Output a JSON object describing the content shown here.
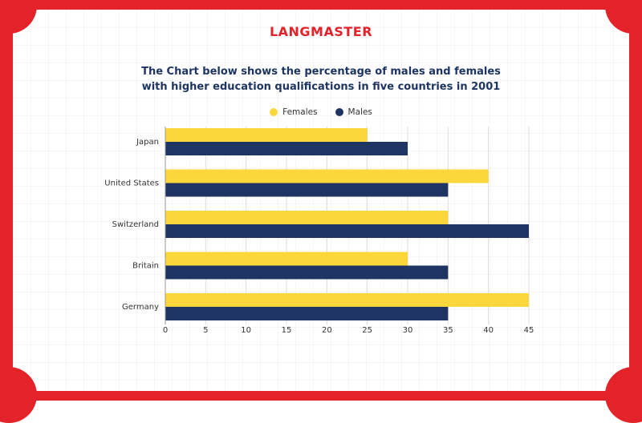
{
  "brand": "LANGMASTER",
  "chart_data": {
    "type": "bar",
    "orientation": "horizontal",
    "title_lines": [
      "The Chart below shows the percentage of males and females",
      "with higher education qualifications in five countries in 2001"
    ],
    "categories": [
      "Japan",
      "United States",
      "Switzerland",
      "Britain",
      "Germany"
    ],
    "series": [
      {
        "name": "Females",
        "color": "#fbd73b",
        "values": [
          25,
          40,
          35,
          30,
          45
        ]
      },
      {
        "name": "Males",
        "color": "#1e3462",
        "values": [
          30,
          35,
          45,
          35,
          35
        ]
      }
    ],
    "xlim": [
      0,
      45
    ],
    "xticks": [
      0,
      5,
      10,
      15,
      20,
      25,
      30,
      35,
      40,
      45
    ],
    "grid": "vertical",
    "legend_position": "top-center"
  }
}
